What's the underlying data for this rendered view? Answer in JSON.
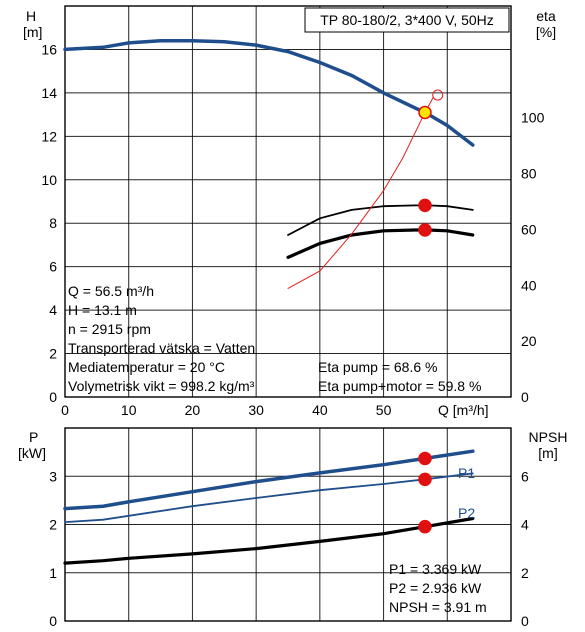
{
  "title": "TP 80-180/2, 3*400 V, 50Hz",
  "top_panel": {
    "y_left_label": "H",
    "y_left_unit": "[m]",
    "y_right_label": "eta",
    "y_right_unit": "[%]",
    "x_label": "Q [m³/h]",
    "info_left": [
      "Q = 56.5 m³/h",
      "H = 13.1 m",
      "n = 2915 rpm",
      "Transporterad vätska = Vatten",
      "Mediatemperatur = 20 °C",
      "Volymetrisk vikt = 998.2 kg/m³"
    ],
    "info_right": [
      "Eta pump = 68.6 %",
      "Eta pump+motor = 59.8 %"
    ]
  },
  "bottom_panel": {
    "y_left_label": "P",
    "y_left_unit": "[kW]",
    "y_right_label": "NPSH",
    "y_right_unit": "[m]",
    "series_labels": [
      "P1",
      "P2"
    ],
    "info": [
      "P1 = 3.369 kW",
      "P2 = 2.936 kW",
      "NPSH = 3.91 m"
    ]
  },
  "colors": {
    "head": "#1f4e8c",
    "p1": "#1f4e8c",
    "p2": "#1f4e8c",
    "eta": "#000000",
    "system_curve": "#e02020",
    "op_point": "#e01010",
    "op_point_fill_head": "#f5e600"
  },
  "chart_data": [
    {
      "type": "line",
      "panel": "top",
      "xlim": [
        0,
        70
      ],
      "ylim_left": [
        0,
        18
      ],
      "ylim_right": [
        0,
        140
      ],
      "x_ticks": [
        0,
        10,
        20,
        30,
        40,
        50
      ],
      "y_left_ticks": [
        0,
        2,
        4,
        6,
        8,
        10,
        12,
        14,
        16
      ],
      "y_right_ticks": [
        0,
        20,
        40,
        60,
        80,
        100
      ],
      "grid": true,
      "series": [
        {
          "axis": "left",
          "x": [
            0,
            6,
            10,
            15,
            20,
            25,
            30,
            35,
            40,
            45,
            50,
            55,
            56.5,
            60,
            64
          ],
          "values": [
            16.0,
            16.1,
            16.3,
            16.4,
            16.4,
            16.35,
            16.2,
            15.9,
            15.4,
            14.8,
            14.0,
            13.3,
            13.1,
            12.5,
            11.6
          ]
        },
        {
          "axis": "right",
          "x": [
            35,
            40,
            45,
            50,
            55,
            57,
            60,
            64
          ],
          "values": [
            58,
            64,
            67,
            68.3,
            68.6,
            68.6,
            68.3,
            67
          ]
        },
        {
          "axis": "right",
          "x": [
            35,
            40,
            45,
            50,
            55,
            57,
            60,
            64
          ],
          "values": [
            50,
            55,
            58,
            59.5,
            59.8,
            59.8,
            59.5,
            58
          ]
        },
        {
          "axis": "left",
          "x": [
            35,
            40,
            45,
            50,
            53,
            56.5,
            57.8
          ],
          "values": [
            5.0,
            5.8,
            7.5,
            9.5,
            11.0,
            13.1,
            13.8
          ]
        }
      ],
      "operating_point": {
        "Q": 56.5,
        "H": 13.1,
        "eta_pump": 68.6,
        "eta_pump_motor": 59.8
      }
    },
    {
      "type": "line",
      "panel": "bottom",
      "xlim": [
        0,
        70
      ],
      "ylim_left": [
        0,
        4
      ],
      "ylim_right": [
        0,
        8
      ],
      "y_left_ticks": [
        0,
        1,
        2,
        3
      ],
      "y_right_ticks": [
        0,
        2,
        4,
        6
      ],
      "grid": true,
      "series": [
        {
          "name": "P1",
          "axis": "left",
          "x": [
            0,
            6,
            10,
            20,
            30,
            40,
            50,
            56.5,
            64
          ],
          "values": [
            2.33,
            2.38,
            2.47,
            2.68,
            2.89,
            3.07,
            3.24,
            3.369,
            3.52
          ]
        },
        {
          "name": "P2",
          "axis": "left",
          "x": [
            0,
            6,
            10,
            20,
            30,
            40,
            50,
            56.5,
            64
          ],
          "values": [
            2.05,
            2.1,
            2.18,
            2.38,
            2.55,
            2.71,
            2.84,
            2.936,
            3.06
          ]
        },
        {
          "axis": "right",
          "x": [
            0,
            6,
            10,
            20,
            30,
            40,
            50,
            56.5,
            64
          ],
          "values": [
            2.4,
            2.5,
            2.6,
            2.78,
            3.0,
            3.3,
            3.62,
            3.91,
            4.25
          ]
        }
      ],
      "operating_point": {
        "Q": 56.5,
        "P1": 3.369,
        "P2": 2.936,
        "NPSH": 3.91
      }
    }
  ]
}
